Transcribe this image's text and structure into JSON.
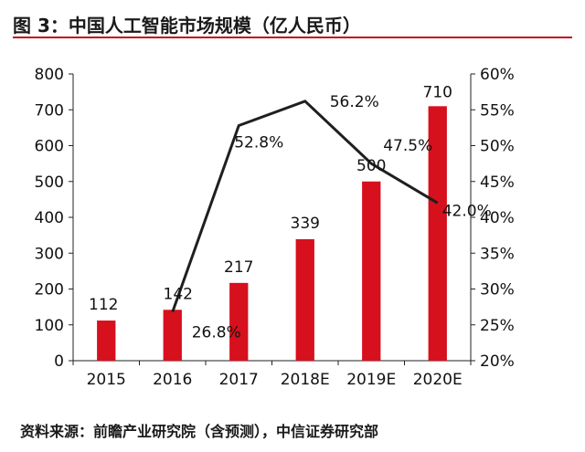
{
  "title": "图 3：中国人工智能市场规模（亿人民币）",
  "source": "资料来源：前瞻产业研究院（含预测），中信证券研究部",
  "chart_data": {
    "type": "bar",
    "categories": [
      "2015",
      "2016",
      "2017",
      "2018E",
      "2019E",
      "2020E"
    ],
    "series": [
      {
        "type": "bar",
        "axis": "left",
        "color": "#d7101e",
        "values": [
          112,
          142,
          217,
          339,
          500,
          710
        ],
        "labels": [
          "112",
          "142",
          "217",
          "339",
          "500",
          "710"
        ]
      },
      {
        "type": "line",
        "axis": "right",
        "color": "#1f1f1f",
        "values": [
          null,
          26.8,
          52.8,
          56.2,
          47.5,
          42.0
        ],
        "labels": [
          "",
          "26.8%",
          "52.8%",
          "56.2%",
          "47.5%",
          "42.0%"
        ]
      }
    ],
    "y_left": {
      "ylim": [
        0,
        800
      ],
      "ticks": [
        "0",
        "100",
        "200",
        "300",
        "400",
        "500",
        "600",
        "700",
        "800"
      ]
    },
    "y_right": {
      "ylim": [
        20,
        60
      ],
      "ticks": [
        "20%",
        "25%",
        "30%",
        "35%",
        "40%",
        "45%",
        "50%",
        "55%",
        "60%"
      ]
    },
    "grid": false,
    "legend": "none"
  }
}
